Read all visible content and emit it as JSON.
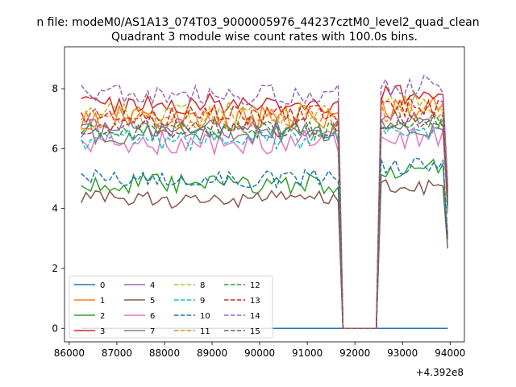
{
  "header_text": "n file: modeM0/AS1A13_074T03_9000005976_44237cztM0_level2_quad_clean",
  "chart_data": {
    "type": "line",
    "title": "Quadrant 3 module wise count rates with 100.0s bins.",
    "xlabel": "",
    "ylabel": "",
    "x_offset_text": "+4.392e8",
    "xlim": [
      85900,
      94300
    ],
    "ylim": [
      -0.45,
      9.4
    ],
    "x_ticks": [
      86000,
      87000,
      88000,
      89000,
      90000,
      91000,
      92000,
      93000,
      94000
    ],
    "x_tick_labels": [
      "86000",
      "87000",
      "88000",
      "89000",
      "90000",
      "91000",
      "92000",
      "93000",
      "94000"
    ],
    "y_ticks": [
      0,
      2,
      4,
      6,
      8
    ],
    "y_tick_labels": [
      "0",
      "2",
      "4",
      "6",
      "8"
    ],
    "grid": false,
    "legend_placement": "lower-left",
    "legend_columns": 4,
    "x_start": 86250,
    "x_step": 100,
    "gap_start": 91750,
    "gap_end": 92450,
    "x_end": 93950,
    "series": [
      {
        "name": "0",
        "color": "#1f77b4",
        "dash": "solid",
        "level": 0,
        "noise": 0,
        "seg2_level": 0
      },
      {
        "name": "1",
        "color": "#ff7f0e",
        "dash": "solid",
        "level": 7.0,
        "noise": 0.45,
        "seg2_level": 7.4
      },
      {
        "name": "2",
        "color": "#2ca02c",
        "dash": "solid",
        "level": 4.8,
        "noise": 0.35,
        "seg2_level": 5.3
      },
      {
        "name": "3",
        "color": "#d62728",
        "dash": "solid",
        "level": 7.5,
        "noise": 0.35,
        "seg2_level": 7.8
      },
      {
        "name": "4",
        "color": "#9467bd",
        "dash": "solid",
        "level": 6.7,
        "noise": 0.35,
        "seg2_level": 6.9
      },
      {
        "name": "5",
        "color": "#8c564b",
        "dash": "solid",
        "level": 4.3,
        "noise": 0.3,
        "seg2_level": 4.7
      },
      {
        "name": "6",
        "color": "#e377c2",
        "dash": "solid",
        "level": 6.2,
        "noise": 0.4,
        "seg2_level": 6.4
      },
      {
        "name": "7",
        "color": "#7f7f7f",
        "dash": "solid",
        "level": 6.5,
        "noise": 0.35,
        "seg2_level": 6.7
      },
      {
        "name": "8",
        "color": "#bcbd22",
        "dash": "dashed",
        "level": 7.2,
        "noise": 0.4,
        "seg2_level": 7.5
      },
      {
        "name": "9",
        "color": "#17becf",
        "dash": "dashed",
        "level": 6.3,
        "noise": 0.35,
        "seg2_level": 6.6
      },
      {
        "name": "10",
        "color": "#1f77b4",
        "dash": "dashed",
        "level": 5.0,
        "noise": 0.3,
        "seg2_level": 5.4
      },
      {
        "name": "11",
        "color": "#ff7f0e",
        "dash": "dashed",
        "level": 7.0,
        "noise": 0.4,
        "seg2_level": 7.3
      },
      {
        "name": "12",
        "color": "#2ca02c",
        "dash": "dashed",
        "level": 6.6,
        "noise": 0.3,
        "seg2_level": 6.9
      },
      {
        "name": "13",
        "color": "#d62728",
        "dash": "dashed",
        "level": 7.1,
        "noise": 0.35,
        "seg2_level": 7.4
      },
      {
        "name": "14",
        "color": "#9467bd",
        "dash": "dashed",
        "level": 7.8,
        "noise": 0.35,
        "seg2_level": 8.1
      },
      {
        "name": "15",
        "color": "#8c564b",
        "dash": "dashed",
        "level": 6.7,
        "noise": 0.35,
        "seg2_level": 7.0
      }
    ]
  }
}
